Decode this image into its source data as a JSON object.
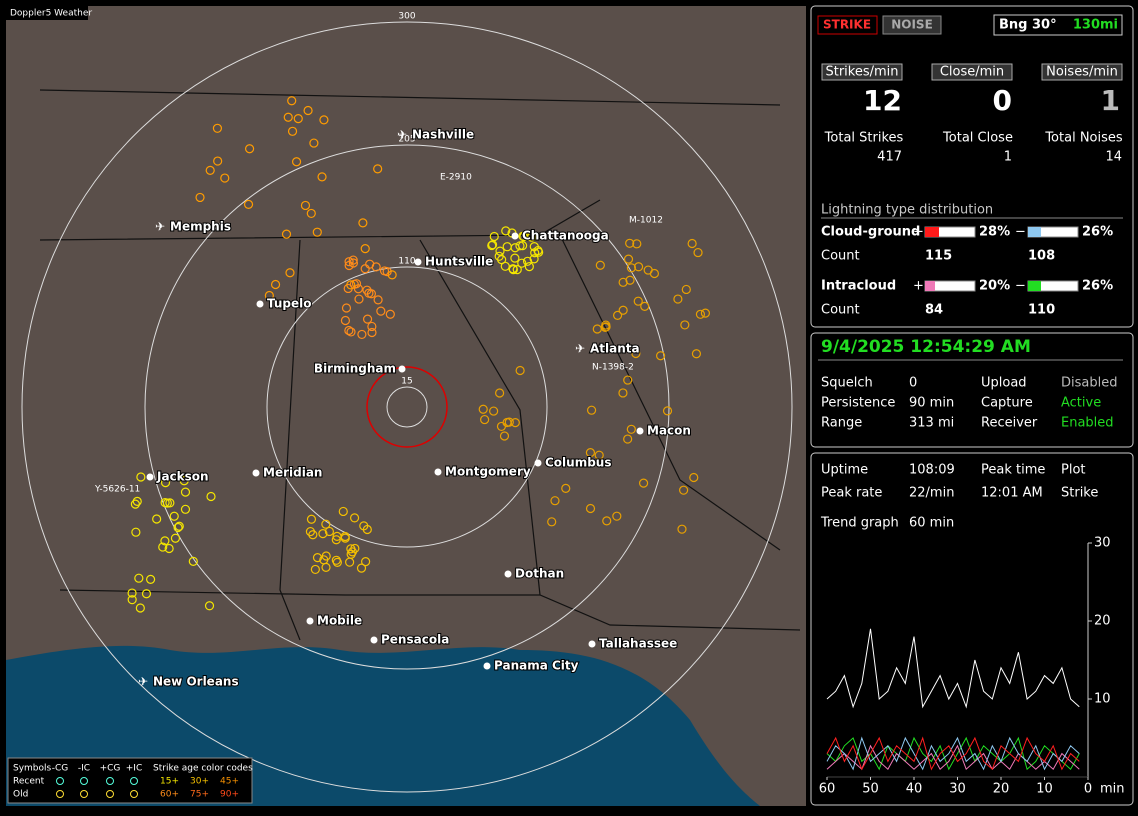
{
  "map": {
    "title": "Doppler5 Weather",
    "ring_labels": [
      "300",
      "205",
      "110",
      "15"
    ],
    "cities": [
      "Nashville",
      "Memphis",
      "Chattanooga",
      "Huntsville",
      "Tupelo",
      "Atlanta",
      "Birmingham",
      "Macon",
      "Columbus",
      "Montgomery",
      "Meridian",
      "Jackson",
      "Dothan",
      "Mobile",
      "Pensacola",
      "Tallahassee",
      "Panama City",
      "New Orleans"
    ],
    "stations": [
      "E-2910",
      "M-1012",
      "N-1398-2",
      "Y-5626-11"
    ],
    "legend": {
      "symbols": "Symbols",
      "types": [
        "-CG",
        "-IC",
        "+CG",
        "+IC"
      ],
      "age_title": "Strike age color codes",
      "recent": "Recent",
      "old": "Old",
      "recent_ages": [
        "15+",
        "30+",
        "45+"
      ],
      "old_ages": [
        "60+",
        "75+",
        "90+"
      ]
    }
  },
  "panel": {
    "strike_button": "STRIKE",
    "noise_button": "NOISE",
    "bearing": "Bng 30°",
    "distance": "130mi",
    "rates": [
      {
        "label": "Strikes/min",
        "value": "12",
        "total_label": "Total Strikes",
        "total": "417"
      },
      {
        "label": "Close/min",
        "value": "0",
        "total_label": "Total Close",
        "total": "1"
      },
      {
        "label": "Noises/min",
        "value": "1",
        "total_label": "Total Noises",
        "total": "14"
      }
    ],
    "distribution": {
      "title": "Lightning type distribution",
      "count_label": "Count",
      "plus": "+",
      "minus": "−",
      "rows": [
        {
          "name": "Cloud-ground",
          "pos": {
            "value": 28,
            "label": "28%"
          },
          "neg": {
            "value": 26,
            "label": "26%"
          },
          "count_pos": "115",
          "count_neg": "108",
          "pos_color": "#ff1a1a",
          "neg_color": "#8ec8f0"
        },
        {
          "name": "Intracloud",
          "pos": {
            "value": 20,
            "label": "20%"
          },
          "neg": {
            "value": 26,
            "label": "26%"
          },
          "count_pos": "84",
          "count_neg": "110",
          "pos_color": "#f07ab8",
          "neg_color": "#22dd22"
        }
      ]
    },
    "datetime": "9/4/2025 12:54:29 AM",
    "status": [
      [
        "Squelch",
        "0",
        "Upload",
        "Disabled"
      ],
      [
        "Persistence",
        "90 min",
        "Capture",
        "Active"
      ],
      [
        "Range",
        "313 mi",
        "Receiver",
        "Enabled"
      ]
    ],
    "stats": [
      [
        "Uptime",
        "108:09",
        "Peak time",
        "Plot"
      ],
      [
        "Peak rate",
        "22/min",
        "12:01 AM",
        "Strike"
      ]
    ],
    "trend_label": "Trend graph",
    "trend_span": "60 min"
  },
  "trend": {
    "type": "line",
    "x_unit": "min",
    "xlim": [
      60,
      0
    ],
    "xticks": [
      60,
      50,
      40,
      30,
      20,
      10,
      0
    ],
    "ylim": [
      0,
      30
    ],
    "yticks": [
      30,
      20,
      10
    ],
    "x": [
      60,
      58,
      56,
      54,
      52,
      50,
      48,
      46,
      44,
      42,
      40,
      38,
      36,
      34,
      32,
      30,
      28,
      26,
      24,
      22,
      20,
      18,
      16,
      14,
      12,
      10,
      8,
      6,
      4,
      2
    ],
    "series": [
      {
        "color": "#ffffff",
        "values": [
          10,
          11,
          13,
          9,
          12,
          19,
          10,
          11,
          14,
          12,
          18,
          9,
          11,
          13,
          10,
          12,
          9,
          15,
          11,
          10,
          14,
          12,
          16,
          10,
          11,
          13,
          12,
          14,
          10,
          9
        ]
      },
      {
        "color": "#ff2020",
        "values": [
          3,
          5,
          2,
          4,
          1,
          3,
          5,
          2,
          4,
          3,
          2,
          5,
          1,
          3,
          4,
          2,
          3,
          5,
          2,
          1,
          4,
          3,
          2,
          5,
          3,
          2,
          4,
          1,
          3,
          2
        ]
      },
      {
        "color": "#8ec8f0",
        "values": [
          2,
          4,
          3,
          1,
          5,
          2,
          3,
          4,
          2,
          5,
          3,
          1,
          4,
          2,
          3,
          5,
          2,
          3,
          1,
          4,
          2,
          5,
          3,
          2,
          4,
          1,
          3,
          2,
          4,
          3
        ]
      },
      {
        "color": "#f07ab8",
        "values": [
          1,
          2,
          3,
          2,
          1,
          4,
          2,
          1,
          3,
          2,
          1,
          2,
          3,
          1,
          2,
          4,
          1,
          2,
          3,
          1,
          2,
          1,
          3,
          2,
          1,
          2,
          1,
          3,
          2,
          1
        ]
      },
      {
        "color": "#22dd22",
        "values": [
          3,
          2,
          4,
          5,
          2,
          3,
          1,
          4,
          3,
          2,
          5,
          3,
          2,
          4,
          1,
          3,
          5,
          2,
          4,
          3,
          2,
          3,
          5,
          1,
          2,
          4,
          3,
          2,
          1,
          3
        ]
      }
    ]
  }
}
